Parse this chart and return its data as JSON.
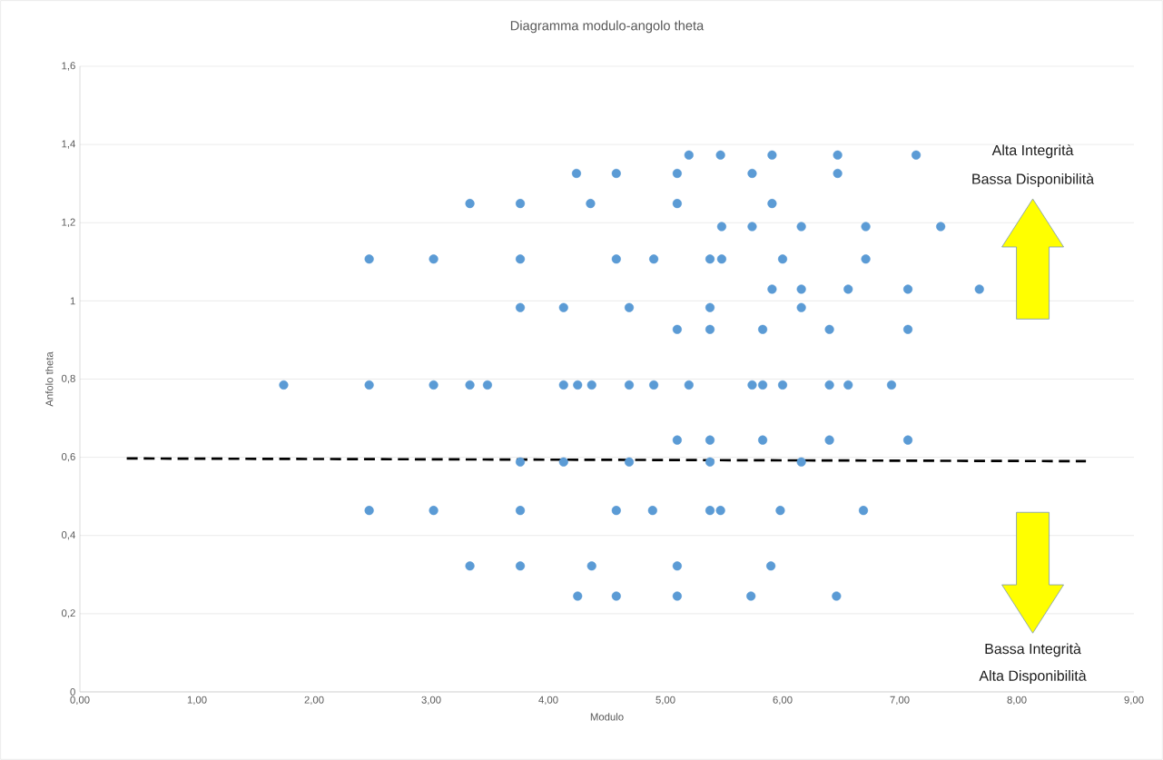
{
  "chart_data": {
    "type": "scatter",
    "title": "Diagramma modulo-angolo theta",
    "xlabel": "Modulo",
    "ylabel": "Anfolo theta",
    "xlim": [
      0,
      9
    ],
    "ylim": [
      0,
      1.6
    ],
    "xticks": [
      {
        "value": 0,
        "label": "0,00"
      },
      {
        "value": 1,
        "label": "1,00"
      },
      {
        "value": 2,
        "label": "2,00"
      },
      {
        "value": 3,
        "label": "3,00"
      },
      {
        "value": 4,
        "label": "4,00"
      },
      {
        "value": 5,
        "label": "5,00"
      },
      {
        "value": 6,
        "label": "6,00"
      },
      {
        "value": 7,
        "label": "7,00"
      },
      {
        "value": 8,
        "label": "8,00"
      },
      {
        "value": 9,
        "label": "9,00"
      }
    ],
    "yticks": [
      0,
      {
        "value": 0.2,
        "label": "0,2"
      },
      {
        "value": 0.4,
        "label": "0,4"
      },
      {
        "value": 0.6,
        "label": "0,6"
      },
      {
        "value": 0.8,
        "label": "0,8"
      },
      1,
      {
        "value": 1.2,
        "label": "1,2"
      },
      {
        "value": 1.4,
        "label": "1,4"
      },
      {
        "value": 1.6,
        "label": "1,6"
      }
    ],
    "grid": "y",
    "marker": "circle",
    "series": [
      {
        "color": "#5b9bd5",
        "x": [
          5.2,
          5.47,
          5.91,
          6.47,
          7.14,
          4.24,
          4.58,
          5.1,
          5.74,
          6.47,
          3.33,
          3.76,
          4.36,
          5.1,
          5.91,
          5.48,
          5.74,
          6.16,
          6.71,
          7.35,
          2.47,
          3.02,
          3.76,
          4.58,
          4.9,
          5.38,
          5.48,
          6.0,
          6.71,
          5.91,
          6.16,
          6.56,
          7.07,
          7.68,
          3.76,
          4.13,
          4.69,
          5.38,
          6.16,
          5.1,
          5.38,
          5.83,
          6.4,
          7.07,
          1.74,
          2.47,
          3.02,
          3.33,
          3.48,
          4.13,
          4.25,
          4.37,
          4.69,
          4.9,
          5.2,
          5.74,
          5.83,
          6.0,
          6.4,
          6.56,
          6.93,
          5.1,
          5.38,
          5.83,
          6.4,
          7.07,
          3.76,
          4.13,
          4.69,
          5.38,
          6.16,
          2.47,
          3.02,
          3.76,
          4.58,
          4.89,
          5.38,
          5.47,
          5.98,
          6.69,
          3.33,
          3.76,
          4.37,
          5.1,
          5.9,
          4.25,
          4.58,
          5.1,
          5.73,
          6.46
        ],
        "values": [
          1.373,
          1.373,
          1.373,
          1.373,
          1.373,
          1.326,
          1.326,
          1.326,
          1.326,
          1.326,
          1.249,
          1.249,
          1.249,
          1.249,
          1.249,
          1.19,
          1.19,
          1.19,
          1.19,
          1.19,
          1.107,
          1.107,
          1.107,
          1.107,
          1.107,
          1.107,
          1.107,
          1.107,
          1.107,
          1.03,
          1.03,
          1.03,
          1.03,
          1.03,
          0.983,
          0.983,
          0.983,
          0.983,
          0.983,
          0.927,
          0.927,
          0.927,
          0.927,
          0.927,
          0.785,
          0.785,
          0.785,
          0.785,
          0.785,
          0.785,
          0.785,
          0.785,
          0.785,
          0.785,
          0.785,
          0.785,
          0.785,
          0.785,
          0.785,
          0.785,
          0.785,
          0.644,
          0.644,
          0.644,
          0.644,
          0.644,
          0.588,
          0.588,
          0.588,
          0.588,
          0.588,
          0.464,
          0.464,
          0.464,
          0.464,
          0.464,
          0.464,
          0.464,
          0.464,
          0.464,
          0.322,
          0.322,
          0.322,
          0.322,
          0.322,
          0.245,
          0.245,
          0.245,
          0.245,
          0.245
        ]
      },
      {
        "type": "line",
        "color": "#000000",
        "line_style": "dashed",
        "marker": "none",
        "x": [
          0.4,
          8.59
        ],
        "values": [
          0.597,
          0.59
        ]
      }
    ],
    "annotations": [
      "Alta Integrità",
      "Bassa Disponibilità",
      "Bassa Integrità",
      "Alta Disponibilità"
    ]
  }
}
